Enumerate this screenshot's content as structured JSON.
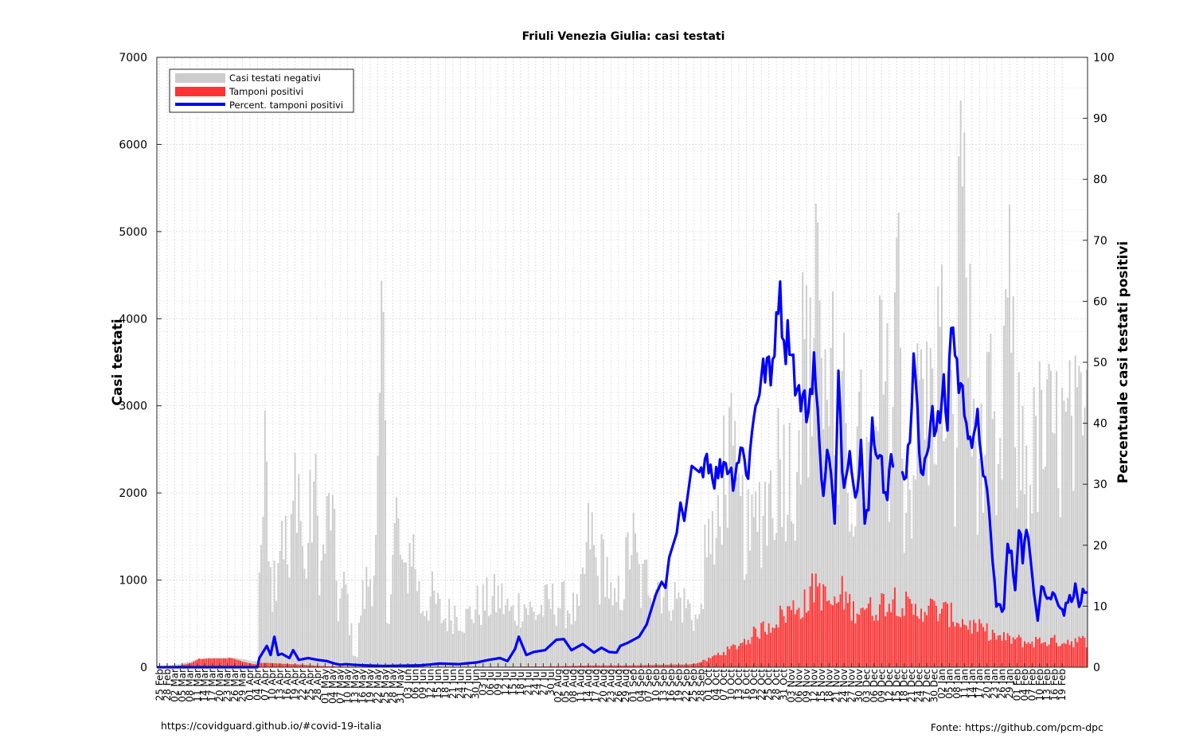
{
  "chart_data": {
    "type": "bar",
    "title": "Friuli Venezia Giulia: casi testati",
    "ylabel_left": "Casi testati",
    "ylabel_right": "Percentuale casi testati positivi",
    "ylim_left": [
      0,
      7000
    ],
    "ylim_right": [
      0,
      100
    ],
    "yticks_left": [
      "0",
      "1000",
      "2000",
      "3000",
      "4000",
      "5000",
      "6000",
      "7000"
    ],
    "yticks_right": [
      "0",
      "10",
      "20",
      "30",
      "40",
      "50",
      "60",
      "70",
      "80",
      "90",
      "100"
    ],
    "grid": "on",
    "legend_placement": "top-left",
    "x_tick_labels": [
      "25 Feb",
      "28 Feb",
      "02 Mar",
      "05 Mar",
      "08 Mar",
      "11 Mar",
      "14 Mar",
      "17 Mar",
      "20 Mar",
      "23 Mar",
      "26 Mar",
      "29 Mar",
      "01 Apr",
      "04 Apr",
      "07 Apr",
      "10 Apr",
      "13 Apr",
      "16 Apr",
      "19 Apr",
      "22 Apr",
      "25 Apr",
      "28 Apr",
      "01 May",
      "04 May",
      "07 May",
      "10 May",
      "13 May",
      "16 May",
      "19 May",
      "22 May",
      "25 May",
      "28 May",
      "31 May",
      "03 Jun",
      "06 Jun",
      "09 Jun",
      "12 Jun",
      "15 Jun",
      "18 Jun",
      "21 Jun",
      "24 Jun",
      "27 Jun",
      "30 Jun",
      "03 Jul",
      "06 Jul",
      "09 Jul",
      "12 Jul",
      "15 Jul",
      "18 Jul",
      "21 Jul",
      "24 Jul",
      "27 Jul",
      "30 Jul",
      "02 Aug",
      "05 Aug",
      "08 Aug",
      "11 Aug",
      "14 Aug",
      "17 Aug",
      "20 Aug",
      "23 Aug",
      "26 Aug",
      "29 Aug",
      "01 Sep",
      "04 Sep",
      "07 Sep",
      "10 Sep",
      "13 Sep",
      "16 Sep",
      "19 Sep",
      "22 Sep",
      "25 Sep",
      "28 Sep",
      "01 Oct",
      "04 Oct",
      "07 Oct",
      "10 Oct",
      "13 Oct",
      "16 Oct",
      "19 Oct",
      "22 Oct",
      "25 Oct",
      "28 Oct",
      "31 Oct",
      "03 Nov",
      "06 Nov",
      "09 Nov",
      "12 Nov",
      "15 Nov",
      "18 Nov",
      "21 Nov",
      "24 Nov",
      "27 Nov",
      "30 Nov",
      "03 Dec",
      "06 Dec",
      "09 Dec",
      "12 Dec",
      "15 Dec",
      "18 Dec",
      "21 Dec",
      "24 Dec",
      "27 Dec",
      "30 Dec",
      "02 Jan",
      "05 Jan",
      "08 Jan",
      "11 Jan",
      "14 Jan",
      "17 Jan",
      "20 Jan",
      "23 Jan",
      "26 Jan",
      "29 Jan",
      "01 Feb",
      "04 Feb",
      "07 Feb",
      "10 Feb",
      "13 Feb",
      "16 Feb",
      "19 Feb"
    ],
    "series": [
      {
        "name": "Casi testati negativi",
        "color": "#cccccc",
        "kind": "bar",
        "axis": "left"
      },
      {
        "name": "Tamponi positivi",
        "color": "#ff3333",
        "kind": "bar",
        "axis": "left"
      },
      {
        "name": "Percent. tamponi positivi",
        "color": "#0000ff",
        "kind": "line",
        "axis": "right"
      }
    ],
    "anchors": {
      "tested_total": [
        [
          0,
          10
        ],
        [
          6,
          20
        ],
        [
          12,
          40
        ],
        [
          18,
          70
        ],
        [
          22,
          100
        ],
        [
          27,
          110
        ],
        [
          33,
          110
        ],
        [
          40,
          110
        ],
        [
          46,
          90
        ],
        [
          50,
          70
        ],
        [
          53,
          70
        ],
        [
          54,
          1200
        ],
        [
          58,
          2500
        ],
        [
          61,
          900
        ],
        [
          66,
          1800
        ],
        [
          70,
          1000
        ],
        [
          74,
          2500
        ],
        [
          78,
          1000
        ],
        [
          83,
          2100
        ],
        [
          87,
          1100
        ],
        [
          92,
          1900
        ],
        [
          96,
          700
        ],
        [
          100,
          900
        ],
        [
          104,
          200
        ],
        [
          106,
          120
        ],
        [
          108,
          700
        ],
        [
          112,
          1000
        ],
        [
          116,
          1300
        ],
        [
          120,
          3800
        ],
        [
          122,
          600
        ],
        [
          127,
          1700
        ],
        [
          131,
          900
        ],
        [
          135,
          1500
        ],
        [
          140,
          700
        ],
        [
          146,
          800
        ],
        [
          152,
          550
        ],
        [
          158,
          650
        ],
        [
          164,
          550
        ],
        [
          170,
          700
        ],
        [
          176,
          750
        ],
        [
          182,
          800
        ],
        [
          188,
          600
        ],
        [
          194,
          750
        ],
        [
          200,
          600
        ],
        [
          206,
          700
        ],
        [
          212,
          750
        ],
        [
          218,
          700
        ],
        [
          224,
          600
        ],
        [
          230,
          1600
        ],
        [
          234,
          1000
        ],
        [
          238,
          1300
        ],
        [
          242,
          600
        ],
        [
          248,
          1000
        ],
        [
          252,
          1500
        ],
        [
          257,
          900
        ],
        [
          262,
          1100
        ],
        [
          268,
          950
        ],
        [
          275,
          800
        ],
        [
          282,
          700
        ],
        [
          288,
          500
        ],
        [
          292,
          1600
        ],
        [
          296,
          1200
        ],
        [
          300,
          2200
        ],
        [
          304,
          2400
        ],
        [
          309,
          1800
        ],
        [
          315,
          1400
        ],
        [
          320,
          1800
        ],
        [
          326,
          2000
        ],
        [
          332,
          2500
        ],
        [
          338,
          2100
        ],
        [
          344,
          3700
        ],
        [
          348,
          3000
        ],
        [
          350,
          6000
        ],
        [
          354,
          2600
        ],
        [
          358,
          4300
        ],
        [
          361,
          1800
        ],
        [
          365,
          2800
        ],
        [
          369,
          2000
        ],
        [
          374,
          2500
        ],
        [
          380,
          2000
        ],
        [
          385,
          3400
        ],
        [
          390,
          2600
        ],
        [
          393,
          4800
        ],
        [
          397,
          2000
        ],
        [
          402,
          2300
        ],
        [
          406,
          3300
        ],
        [
          410,
          2800
        ],
        [
          416,
          3700
        ],
        [
          420,
          3000
        ],
        [
          424,
          2200
        ],
        [
          428,
          6700
        ],
        [
          430,
          4700
        ],
        [
          433,
          2800
        ],
        [
          438,
          2300
        ],
        [
          443,
          2800
        ],
        [
          447,
          1700
        ],
        [
          452,
          4500
        ],
        [
          456,
          2600
        ],
        [
          460,
          2500
        ],
        [
          464,
          2200
        ],
        [
          468,
          2600
        ]
      ],
      "positive": [
        [
          0,
          0
        ],
        [
          6,
          5
        ],
        [
          12,
          20
        ],
        [
          18,
          50
        ],
        [
          22,
          100
        ],
        [
          26,
          140
        ],
        [
          30,
          150
        ],
        [
          34,
          130
        ],
        [
          40,
          100
        ],
        [
          46,
          60
        ],
        [
          50,
          40
        ],
        [
          53,
          30
        ],
        [
          54,
          50
        ],
        [
          58,
          50
        ],
        [
          66,
          40
        ],
        [
          76,
          30
        ],
        [
          90,
          10
        ],
        [
          106,
          5
        ],
        [
          120,
          5
        ],
        [
          180,
          5
        ],
        [
          210,
          10
        ],
        [
          230,
          20
        ],
        [
          250,
          20
        ],
        [
          262,
          25
        ],
        [
          275,
          30
        ],
        [
          282,
          30
        ],
        [
          286,
          40
        ],
        [
          292,
          80
        ],
        [
          298,
          150
        ],
        [
          304,
          200
        ],
        [
          312,
          300
        ],
        [
          320,
          420
        ],
        [
          326,
          500
        ],
        [
          332,
          600
        ],
        [
          340,
          700
        ],
        [
          346,
          750
        ],
        [
          350,
          1000
        ],
        [
          354,
          800
        ],
        [
          360,
          700
        ],
        [
          364,
          850
        ],
        [
          370,
          650
        ],
        [
          374,
          720
        ],
        [
          380,
          650
        ],
        [
          386,
          750
        ],
        [
          392,
          800
        ],
        [
          397,
          720
        ],
        [
          402,
          620
        ],
        [
          408,
          700
        ],
        [
          414,
          650
        ],
        [
          420,
          620
        ],
        [
          426,
          540
        ],
        [
          430,
          500
        ],
        [
          436,
          450
        ],
        [
          442,
          400
        ],
        [
          448,
          330
        ],
        [
          456,
          320
        ],
        [
          462,
          280
        ],
        [
          468,
          300
        ]
      ],
      "percent": [
        [
          0,
          0
        ],
        [
          53,
          0
        ],
        [
          54,
          1.5
        ],
        [
          56,
          2.5
        ],
        [
          58,
          3.5
        ],
        [
          60,
          2
        ],
        [
          62,
          5
        ],
        [
          64,
          2
        ],
        [
          66,
          2.2
        ],
        [
          70,
          1.5
        ],
        [
          72,
          2.8
        ],
        [
          75,
          1.2
        ],
        [
          80,
          1.5
        ],
        [
          85,
          1.2
        ],
        [
          90,
          1
        ],
        [
          94,
          0.6
        ],
        [
          97,
          0.4
        ],
        [
          100,
          0.5
        ],
        [
          104,
          0.4
        ],
        [
          110,
          0.3
        ],
        [
          120,
          0.2
        ],
        [
          140,
          0.3
        ],
        [
          150,
          0.6
        ],
        [
          160,
          0.5
        ],
        [
          170,
          0.8
        ],
        [
          176,
          1.2
        ],
        [
          182,
          1.5
        ],
        [
          186,
          1
        ],
        [
          190,
          3
        ],
        [
          192,
          5
        ],
        [
          196,
          2
        ],
        [
          200,
          2.5
        ],
        [
          206,
          2.8
        ],
        [
          212,
          4.5
        ],
        [
          216,
          4.6
        ],
        [
          220,
          2.8
        ],
        [
          226,
          3.8
        ],
        [
          232,
          2.4
        ],
        [
          236,
          3.2
        ],
        [
          240,
          2.5
        ],
        [
          244,
          2.4
        ],
        [
          246,
          3.5
        ],
        [
          250,
          4
        ],
        [
          256,
          5
        ],
        [
          260,
          7
        ],
        [
          263,
          10
        ],
        [
          265,
          12
        ],
        [
          268,
          14
        ],
        [
          270,
          13
        ],
        [
          272,
          18
        ],
        [
          276,
          22
        ],
        [
          278,
          27
        ],
        [
          280,
          24
        ],
        [
          284,
          33
        ],
        [
          288,
          32
        ],
        [
          292,
          35
        ],
        [
          296,
          31
        ],
        [
          302,
          34
        ],
        [
          306,
          31
        ],
        [
          310,
          36
        ],
        [
          314,
          32
        ],
        [
          318,
          44
        ],
        [
          324,
          50
        ],
        [
          326,
          46
        ],
        [
          330,
          62
        ],
        [
          334,
          53
        ],
        [
          336,
          55
        ],
        [
          340,
          45
        ],
        [
          344,
          43
        ],
        [
          346,
          42
        ],
        [
          349,
          51
        ],
        [
          352,
          35
        ],
        [
          354,
          30
        ],
        [
          357,
          36
        ],
        [
          360,
          23
        ],
        [
          362,
          47
        ],
        [
          364,
          32
        ],
        [
          366,
          31
        ],
        [
          368,
          38
        ],
        [
          370,
          30
        ],
        [
          372,
          28
        ],
        [
          374,
          40
        ],
        [
          376,
          25
        ],
        [
          378,
          26
        ],
        [
          380,
          39
        ],
        [
          382,
          34
        ],
        [
          384,
          37
        ],
        [
          386,
          30
        ],
        [
          388,
          29
        ],
        [
          390,
          33
        ],
        [
          392,
          35
        ],
        [
          394,
          38
        ],
        [
          396,
          34
        ],
        [
          398,
          32
        ],
        [
          400,
          37
        ],
        [
          402,
          52
        ],
        [
          406,
          30
        ],
        [
          410,
          38
        ],
        [
          412,
          43
        ],
        [
          414,
          38
        ],
        [
          418,
          45
        ],
        [
          420,
          40
        ],
        [
          422,
          58
        ],
        [
          424,
          52
        ],
        [
          426,
          47
        ],
        [
          428,
          44
        ],
        [
          430,
          42
        ],
        [
          432,
          38
        ],
        [
          434,
          36
        ],
        [
          436,
          40
        ],
        [
          438,
          36
        ],
        [
          440,
          30
        ],
        [
          442,
          25
        ],
        [
          444,
          18
        ],
        [
          446,
          10
        ],
        [
          448,
          10
        ],
        [
          450,
          9.5
        ],
        [
          452,
          20
        ],
        [
          454,
          18
        ],
        [
          456,
          13
        ],
        [
          458,
          24
        ],
        [
          460,
          18
        ],
        [
          462,
          22
        ],
        [
          464,
          18
        ],
        [
          466,
          13
        ],
        [
          468,
          8
        ],
        [
          470,
          14
        ],
        [
          472,
          12
        ],
        [
          474,
          11
        ],
        [
          476,
          12
        ],
        [
          478,
          11.5
        ],
        [
          480,
          10
        ],
        [
          482,
          9
        ],
        [
          484,
          11
        ],
        [
          486,
          11.5
        ],
        [
          488,
          13
        ],
        [
          490,
          10
        ],
        [
          492,
          12
        ],
        [
          494,
          11.5
        ]
      ]
    }
  },
  "legend": {
    "items": [
      {
        "label": "Casi testati negativi",
        "color": "#cccccc",
        "swatch": "bar"
      },
      {
        "label": "Tamponi positivi",
        "color": "#ff3333",
        "swatch": "bar"
      },
      {
        "label": "Percent. tamponi positivi",
        "color": "#0000ff",
        "swatch": "line"
      }
    ]
  },
  "footer": {
    "left": "https://covidguard.github.io/#covid-19-italia",
    "right": "Fonte: https://github.com/pcm-dpc"
  }
}
